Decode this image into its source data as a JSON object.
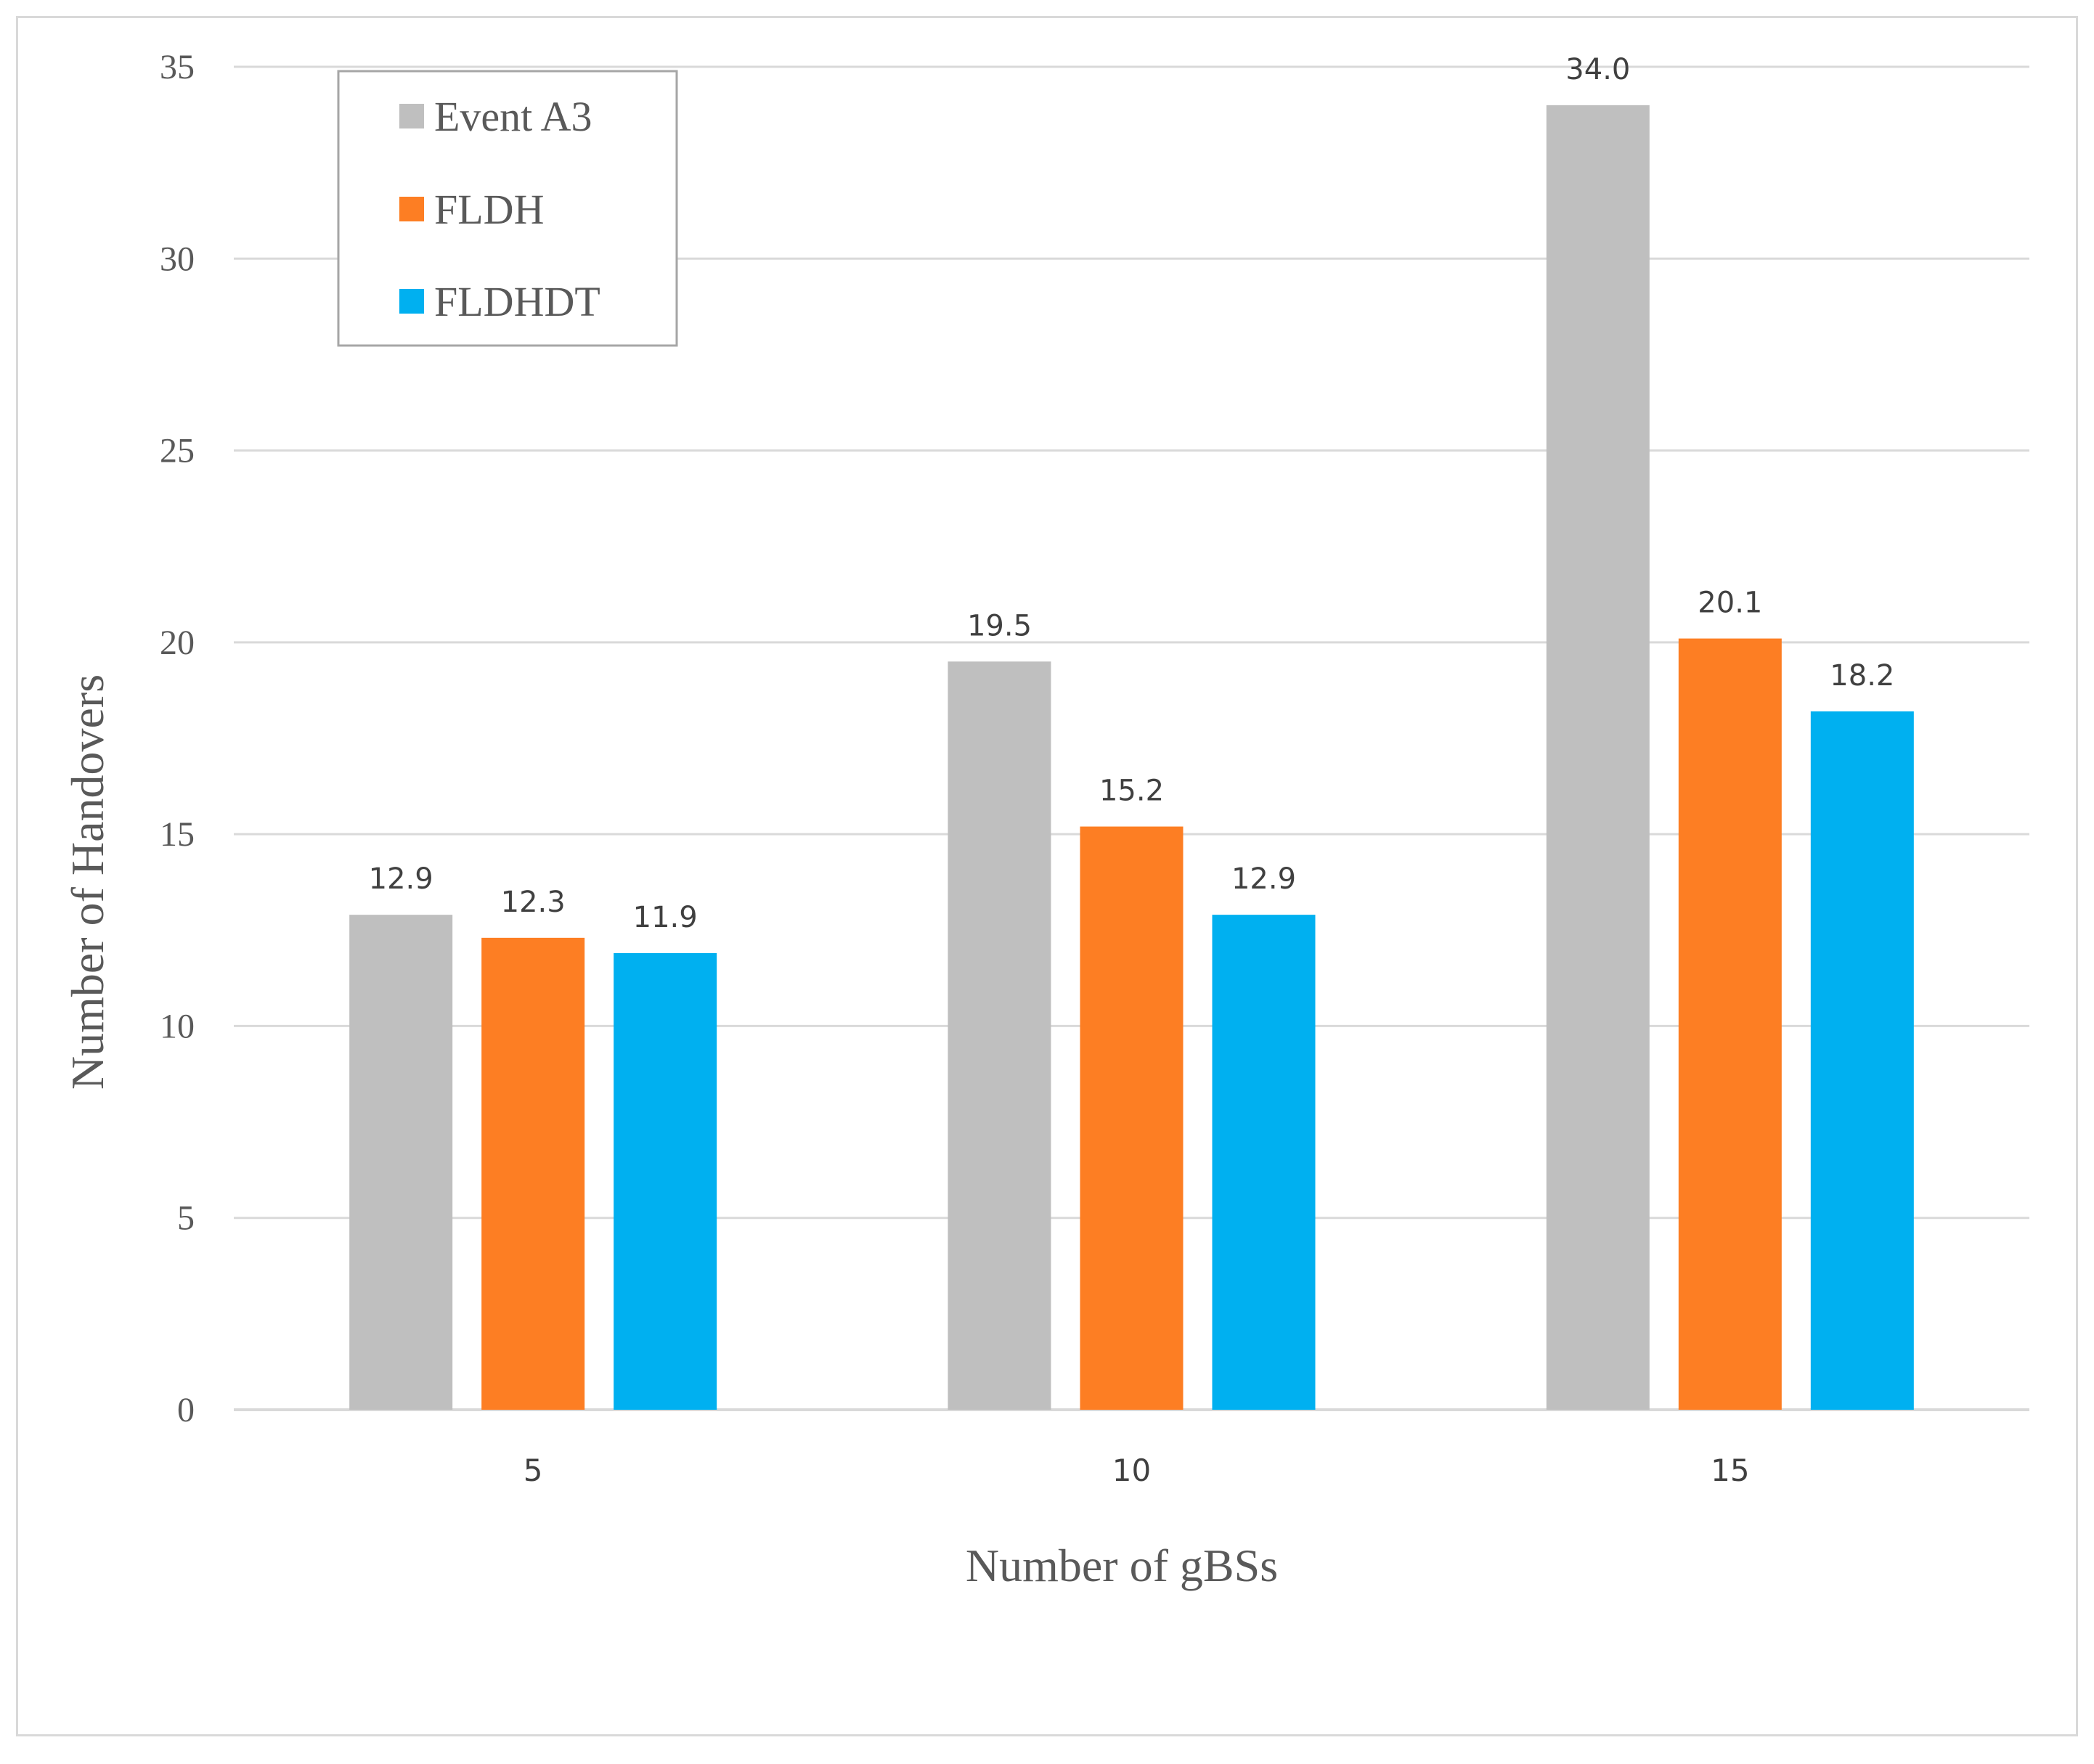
{
  "chart_data": {
    "type": "bar",
    "title": "",
    "xlabel": "Number of gBSs",
    "ylabel": "Number of Handovers",
    "categories": [
      "5",
      "10",
      "15"
    ],
    "ylim": [
      0,
      35
    ],
    "yticks": [
      "0",
      "5",
      "10",
      "15",
      "20",
      "25",
      "30",
      "35"
    ],
    "grid": true,
    "legend_position": "top-left",
    "series": [
      {
        "name": "Event A3",
        "color": "#bfbfbf",
        "values": [
          12.9,
          19.5,
          34.0
        ],
        "labels": [
          "12.9",
          "19.5",
          "34.0"
        ]
      },
      {
        "name": "FLDH",
        "color": "#fd7e23",
        "values": [
          12.3,
          15.2,
          20.1
        ],
        "labels": [
          "12.3",
          "15.2",
          "20.1"
        ]
      },
      {
        "name": "FLDHDT",
        "color": "#00b0f0",
        "values": [
          11.9,
          12.9,
          18.2
        ],
        "labels": [
          "11.9",
          "12.9",
          "18.2"
        ]
      }
    ]
  }
}
